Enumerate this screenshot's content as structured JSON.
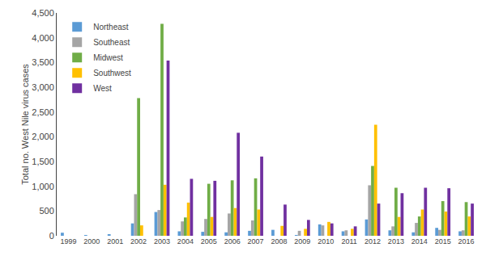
{
  "chart_data": {
    "type": "bar",
    "categories": [
      "1999",
      "2000",
      "2001",
      "2002",
      "2003",
      "2004",
      "2005",
      "2006",
      "2007",
      "2008",
      "2009",
      "2010",
      "2011",
      "2012",
      "2013",
      "2014",
      "2015",
      "2016"
    ],
    "series": [
      {
        "name": "Northeast",
        "color": "#5b9bd5",
        "values": [
          62,
          10,
          30,
          250,
          480,
          90,
          80,
          70,
          100,
          120,
          10,
          230,
          90,
          330,
          110,
          70,
          160,
          90
        ]
      },
      {
        "name": "Southeast",
        "color": "#a5a5a5",
        "values": [
          0,
          0,
          0,
          840,
          520,
          290,
          340,
          450,
          310,
          0,
          100,
          210,
          110,
          1020,
          190,
          260,
          120,
          110
        ]
      },
      {
        "name": "Midwest",
        "color": "#70ad47",
        "values": [
          0,
          0,
          0,
          2780,
          4280,
          370,
          1050,
          1120,
          1160,
          0,
          0,
          0,
          0,
          1410,
          970,
          390,
          700,
          680
        ]
      },
      {
        "name": "Southwest",
        "color": "#ffc000",
        "values": [
          0,
          0,
          0,
          210,
          1030,
          670,
          380,
          560,
          530,
          200,
          140,
          280,
          140,
          2240,
          380,
          530,
          490,
          390
        ]
      },
      {
        "name": "West",
        "color": "#7030a0",
        "values": [
          0,
          0,
          0,
          0,
          3540,
          1150,
          1110,
          2080,
          1600,
          630,
          320,
          250,
          190,
          650,
          860,
          970,
          960,
          650
        ]
      }
    ],
    "ylabel": "Total no. West Nile virus cases",
    "ylim": [
      0,
      4500
    ],
    "yticks": [
      0,
      500,
      {
        "value": 1000,
        "label": "1,000"
      },
      {
        "value": 1500,
        "label": "1,500"
      },
      {
        "value": 2000,
        "label": "2,000"
      },
      {
        "value": 2500,
        "label": "2,500"
      },
      {
        "value": 3000,
        "label": "3,000"
      },
      {
        "value": 3500,
        "label": "3,500"
      },
      {
        "value": 4000,
        "label": "4,000"
      },
      {
        "value": 4500,
        "label": "4,500"
      }
    ],
    "grid": false,
    "legend": "upper left"
  }
}
